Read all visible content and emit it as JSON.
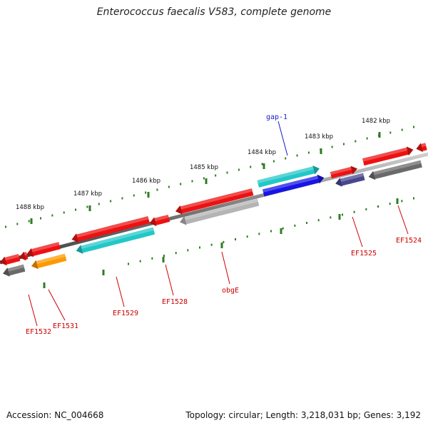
{
  "title": "Enterococcus faecalis V583, complete genome",
  "footer": {
    "accession": "Accession: NC_004668",
    "topology": "Topology: circular; Length: 3,218,031 bp; Genes: 3,192"
  },
  "ticks": [
    "1482 kbp",
    "1483 kbp",
    "1484 kbp",
    "1485 kbp",
    "1486 kbp",
    "1487 kbp",
    "1488 kbp"
  ],
  "genes": [
    {
      "label": "gap-1",
      "color": "#1a1acc"
    },
    {
      "label": "EF1524",
      "color": "#cc0000"
    },
    {
      "label": "EF1525",
      "color": "#cc0000"
    },
    {
      "label": "obgE",
      "color": "#cc0000"
    },
    {
      "label": "EF1528",
      "color": "#cc0000"
    },
    {
      "label": "EF1529",
      "color": "#cc0000"
    },
    {
      "label": "EF1531",
      "color": "#cc0000"
    },
    {
      "label": "EF1532",
      "color": "#cc0000"
    }
  ],
  "colors": {
    "backbone": "#8a8a8a",
    "ruler": "#2e7d22",
    "red": "#ee1111",
    "cyan": "#22c8c8",
    "blue": "#1515e8",
    "gray": "#6a6a6a",
    "silver": "#b4b4b4",
    "orange": "#ff9900",
    "slate": "#484890"
  }
}
